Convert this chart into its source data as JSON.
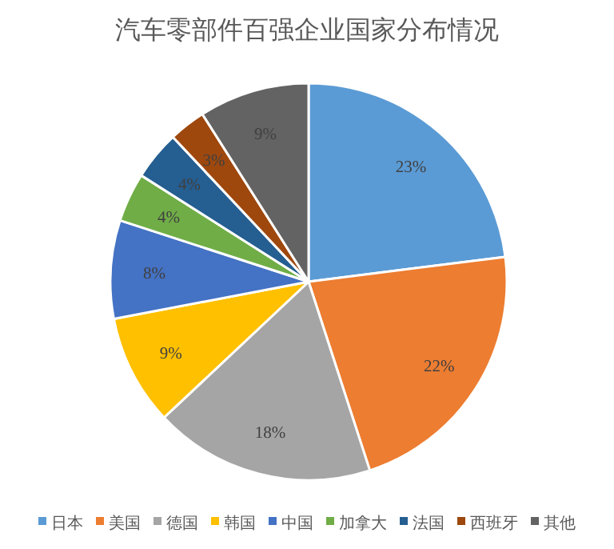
{
  "chart_data": {
    "type": "pie",
    "title": "汽车零部件百强企业国家分布情况",
    "categories": [
      "日本",
      "美国",
      "德国",
      "韩国",
      "中国",
      "加拿大",
      "法国",
      "西班牙",
      "其他"
    ],
    "values": [
      23,
      22,
      18,
      9,
      8,
      4,
      4,
      3,
      9
    ],
    "value_labels": [
      "23%",
      "22%",
      "18%",
      "9%",
      "8%",
      "4%",
      "4%",
      "3%",
      "9%"
    ],
    "colors": [
      "#5b9bd5",
      "#ed7d31",
      "#a5a5a5",
      "#ffc000",
      "#4472c4",
      "#70ad47",
      "#255e91",
      "#9e480e",
      "#636363"
    ],
    "legend": "bottom"
  }
}
